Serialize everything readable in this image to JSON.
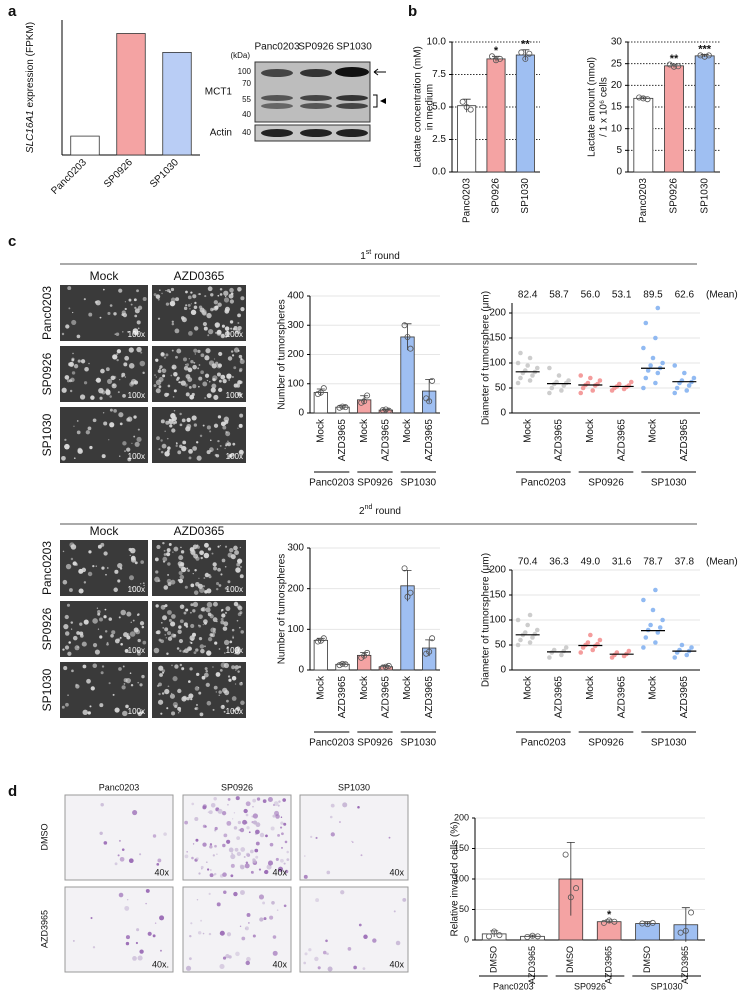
{
  "panel_labels": [
    "a",
    "b",
    "c",
    "d"
  ],
  "blot": {
    "kda": "(kDa)",
    "lanes": [
      "Panc0203",
      "SP0926",
      "SP1030"
    ],
    "markers": [
      100,
      70,
      55,
      40
    ],
    "actin_marker": 40,
    "targets": [
      "MCT1",
      "Actin"
    ]
  },
  "spheres": {
    "rounds": [
      {
        "ordinal": "1",
        "suffix": "st",
        "word": "round"
      },
      {
        "ordinal": "2",
        "suffix": "nd",
        "word": "round"
      }
    ],
    "columns": [
      "Mock",
      "AZD0365"
    ],
    "rows": [
      "Panc0203",
      "SP0926",
      "SP1030"
    ],
    "magnification": "100x"
  },
  "invasion": {
    "columns": [
      "Panc0203",
      "SP0926",
      "SP1030"
    ],
    "rows": [
      "DMSO",
      "AZD3965"
    ],
    "magnification": [
      [
        "40x",
        "40x",
        "40x"
      ],
      [
        "40x.",
        "40x",
        "40x"
      ]
    ]
  },
  "chart_data": [
    {
      "type": "bar",
      "ylabel": [
        [
          {
            "text": "SLC16A1",
            "italic": true
          },
          {
            "text": " expression (FPKM)"
          }
        ]
      ],
      "categories": [
        "Panc0203",
        "SP0926",
        "SP1030"
      ],
      "values": [
        7,
        45,
        38
      ],
      "colors": [
        "#ffffff",
        "#f4a3a3",
        "#b9cdf5"
      ],
      "ylim": [
        0,
        50
      ]
    },
    {
      "type": "bar",
      "ylabel": [
        "Lactate concentration (mM)",
        "in medium"
      ],
      "categories": [
        "Panc0203",
        "SP0926",
        "SP1030"
      ],
      "values": [
        5.1,
        8.7,
        9.0
      ],
      "errors": [
        0.5,
        0.2,
        0.4
      ],
      "points": [
        [
          5.4,
          5.0,
          4.8
        ],
        [
          8.9,
          8.6,
          8.7
        ],
        [
          9.2,
          8.7,
          9.1
        ]
      ],
      "significance": [
        null,
        "*",
        "**"
      ],
      "colors": [
        "#ffffff",
        "#f4a3a3",
        "#9fbff2"
      ],
      "ylim": [
        0,
        10
      ],
      "yticks": [
        {
          "value": 0,
          "label": "0.0"
        },
        {
          "value": 2.5,
          "label": "2.5"
        },
        {
          "value": 5,
          "label": "5.0"
        },
        {
          "value": 7.5,
          "label": "7.5"
        },
        {
          "value": 10,
          "label": "10.0"
        }
      ],
      "grid": "dotted"
    },
    {
      "type": "bar",
      "ylabel": [
        "Lactate amount (nmol)",
        "/ 1 x 10⁶ cells"
      ],
      "categories": [
        "Panc0203",
        "SP0926",
        "SP1030"
      ],
      "values": [
        17,
        24.5,
        26.8
      ],
      "errors": [
        0.3,
        0.4,
        0.3
      ],
      "points": [
        [
          17.2,
          17.0,
          16.8
        ],
        [
          24.8,
          24.3,
          24.4
        ],
        [
          26.9,
          26.6,
          26.9
        ]
      ],
      "significance": [
        null,
        "**",
        "***"
      ],
      "colors": [
        "#ffffff",
        "#f4a3a3",
        "#9fbff2"
      ],
      "ylim": [
        0,
        30
      ],
      "yticks": [
        0,
        5,
        10,
        15,
        20,
        25,
        30
      ],
      "grid": "dotted"
    },
    {
      "type": "bar",
      "ylabel": [
        "Number of tumorspheres"
      ],
      "categories": [
        "Mock",
        "AZD3965",
        "Mock",
        "AZD3965",
        "Mock",
        "AZD3965"
      ],
      "groups": [
        "Panc0203",
        "SP0926",
        "SP1030"
      ],
      "values": [
        70,
        20,
        45,
        10,
        260,
        75
      ],
      "errors": [
        12,
        5,
        14,
        3,
        45,
        40
      ],
      "points": [
        [
          65,
          70,
          85
        ],
        [
          18,
          22,
          20
        ],
        [
          35,
          40,
          60
        ],
        [
          10,
          12,
          8
        ],
        [
          300,
          260,
          220
        ],
        [
          50,
          40,
          110
        ]
      ],
      "colors": [
        "#ffffff",
        "#ffffff",
        "#f4a3a3",
        "#f4a3a3",
        "#9fbff2",
        "#9fbff2"
      ],
      "ylim": [
        0,
        400
      ],
      "yticks": [
        0,
        100,
        200,
        300,
        400
      ],
      "grid": "solid"
    },
    {
      "type": "strip",
      "ylabel": [
        "Diameter of tumorsphere (μm)"
      ],
      "categories": [
        "Mock",
        "AZD3965",
        "Mock",
        "AZD3965",
        "Mock",
        "AZD3965"
      ],
      "groups": [
        "Panc0203",
        "SP0926",
        "SP1030"
      ],
      "values": [
        82.4,
        58.7,
        56.0,
        53.1,
        89.5,
        62.6
      ],
      "value_labels": [
        "82.4",
        "58.7",
        "56.0",
        "53.1",
        "89.5",
        "62.6"
      ],
      "value_note": "(Mean)",
      "points": [
        [
          60,
          65,
          70,
          75,
          80,
          82,
          85,
          90,
          95,
          100,
          110,
          120
        ],
        [
          40,
          45,
          50,
          55,
          58,
          60,
          62,
          65,
          75,
          90
        ],
        [
          40,
          45,
          50,
          55,
          56,
          58,
          60,
          65,
          70,
          75
        ],
        [
          45,
          48,
          50,
          52,
          53,
          55,
          58,
          62
        ],
        [
          50,
          60,
          70,
          80,
          85,
          90,
          95,
          100,
          110,
          130,
          150,
          180,
          210
        ],
        [
          40,
          45,
          50,
          55,
          60,
          62,
          65,
          70,
          80,
          95
        ]
      ],
      "colors": [
        "#c4c4c4",
        "#c4c4c4",
        "#f28b8b",
        "#f28b8b",
        "#7eaef0",
        "#7eaef0"
      ],
      "ylim": [
        0,
        220
      ],
      "yticks": [
        0,
        50,
        100,
        150,
        200
      ],
      "grid": "solid"
    },
    {
      "type": "bar",
      "ylabel": [
        "Number of tumorspheres"
      ],
      "categories": [
        "Mock",
        "AZD3965",
        "Mock",
        "AZD3965",
        "Mock",
        "AZD3965"
      ],
      "groups": [
        "Panc0203",
        "SP0926",
        "SP1030"
      ],
      "values": [
        73,
        14,
        36,
        8,
        207,
        54
      ],
      "errors": [
        5,
        3,
        7,
        3,
        38,
        20
      ],
      "points": [
        [
          70,
          72,
          78
        ],
        [
          12,
          15,
          14
        ],
        [
          30,
          35,
          42
        ],
        [
          6,
          8,
          10
        ],
        [
          250,
          180,
          190
        ],
        [
          40,
          45,
          78
        ]
      ],
      "colors": [
        "#ffffff",
        "#ffffff",
        "#f4a3a3",
        "#f4a3a3",
        "#9fbff2",
        "#9fbff2"
      ],
      "ylim": [
        0,
        300
      ],
      "yticks": [
        0,
        100,
        200,
        300
      ],
      "grid": "solid"
    },
    {
      "type": "strip",
      "ylabel": [
        "Diameter of tumorsphere (μm)"
      ],
      "categories": [
        "Mock",
        "AZD3965",
        "Mock",
        "AZD3965",
        "Mock",
        "AZD3965"
      ],
      "groups": [
        "Panc0203",
        "SP0926",
        "SP1030"
      ],
      "values": [
        70.4,
        36.3,
        49.0,
        31.6,
        78.7,
        37.8
      ],
      "value_labels": [
        "70.4",
        "36.3",
        "49.0",
        "31.6",
        "78.7",
        "37.8"
      ],
      "value_note": "(Mean)",
      "points": [
        [
          50,
          55,
          60,
          65,
          70,
          72,
          75,
          80,
          90,
          100,
          110
        ],
        [
          25,
          30,
          35,
          38,
          40,
          45
        ],
        [
          35,
          40,
          45,
          48,
          50,
          52,
          55,
          60,
          70
        ],
        [
          25,
          28,
          30,
          32,
          35,
          38
        ],
        [
          45,
          55,
          65,
          75,
          80,
          85,
          90,
          100,
          120,
          140,
          160
        ],
        [
          25,
          30,
          35,
          38,
          40,
          45,
          50
        ]
      ],
      "colors": [
        "#c4c4c4",
        "#c4c4c4",
        "#f28b8b",
        "#f28b8b",
        "#7eaef0",
        "#7eaef0"
      ],
      "ylim": [
        0,
        200
      ],
      "yticks": [
        0,
        50,
        100,
        150,
        200
      ],
      "grid": "solid"
    },
    {
      "type": "bar",
      "ylabel": [
        "Relative invaded cells (%)"
      ],
      "categories": [
        "DMSO",
        "AZD3965",
        "DMSO",
        "AZD3965",
        "DMSO",
        "AZD3965"
      ],
      "groups": [
        "Panc0203",
        "SP0926",
        "SP1030"
      ],
      "values": [
        10,
        6,
        100,
        30,
        27,
        25
      ],
      "errors": [
        5,
        2,
        60,
        3,
        3,
        28
      ],
      "points": [
        [
          6,
          14,
          8
        ],
        [
          5,
          7,
          6
        ],
        [
          140,
          70,
          85
        ],
        [
          28,
          32,
          30
        ],
        [
          27,
          26,
          28
        ],
        [
          12,
          15,
          45
        ]
      ],
      "significance": [
        null,
        null,
        null,
        "*",
        null,
        null
      ],
      "colors": [
        "#ffffff",
        "#ffffff",
        "#f4a3a3",
        "#f4a3a3",
        "#9fbff2",
        "#9fbff2"
      ],
      "ylim": [
        0,
        200
      ],
      "yticks": [
        0,
        50,
        100,
        150,
        200
      ],
      "grid": "solid"
    }
  ]
}
